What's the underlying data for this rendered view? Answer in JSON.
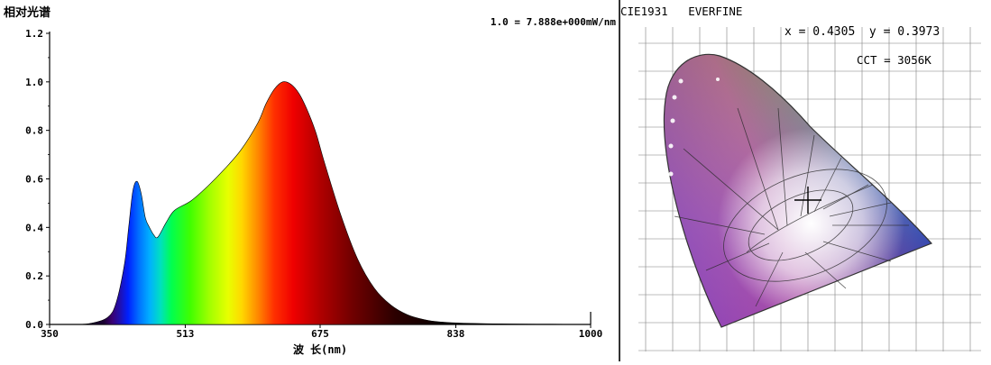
{
  "chart_data": [
    {
      "type": "area",
      "title": "相对光谱",
      "annotation": "1.0 = 7.888e+000mW/nm",
      "xlabel": "波 长(nm)",
      "ylabel": "",
      "xlim": [
        350,
        1000
      ],
      "ylim": [
        0,
        1.2
      ],
      "xticks": [
        "350",
        "513",
        "675",
        "838",
        "1000"
      ],
      "yticks": [
        "0.0",
        "0.2",
        "0.4",
        "0.6",
        "0.8",
        "1.0",
        "1.2"
      ],
      "fill": "wavelength-colored spectrum",
      "grid": false,
      "x": [
        350,
        380,
        400,
        420,
        430,
        440,
        445,
        450,
        455,
        460,
        465,
        470,
        475,
        480,
        490,
        500,
        520,
        540,
        560,
        580,
        600,
        610,
        620,
        630,
        640,
        650,
        660,
        670,
        680,
        700,
        720,
        740,
        760,
        780,
        800,
        820,
        850,
        900,
        950,
        1000
      ],
      "y": [
        0.0,
        0.0,
        0.005,
        0.03,
        0.09,
        0.25,
        0.4,
        0.55,
        0.59,
        0.54,
        0.44,
        0.4,
        0.37,
        0.36,
        0.42,
        0.47,
        0.51,
        0.57,
        0.64,
        0.72,
        0.83,
        0.91,
        0.97,
        1.0,
        0.99,
        0.95,
        0.88,
        0.79,
        0.67,
        0.45,
        0.27,
        0.15,
        0.08,
        0.04,
        0.02,
        0.01,
        0.005,
        0.002,
        0.001,
        0.0
      ]
    },
    {
      "type": "scatter",
      "title": "CIE1931   EVERFINE",
      "readout": {
        "coords": "x = 0.4305  y = 0.3973",
        "cct": "CCT = 3056K"
      },
      "x": [
        0.4305
      ],
      "y": [
        0.3973
      ],
      "marker": "crosshair"
    }
  ],
  "colors": {
    "axis": "#000000",
    "border": "#333333",
    "text": "#000000"
  }
}
